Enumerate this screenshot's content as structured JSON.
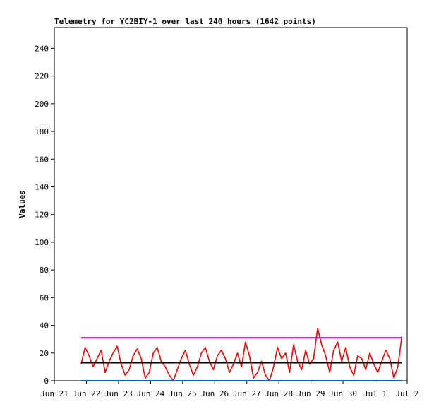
{
  "chart_data": {
    "type": "line",
    "title": "Telemetry for YC2BIY-1 over last 240 hours (1642 points)",
    "xlabel": "",
    "ylabel": "Values",
    "ylim": [
      0,
      255
    ],
    "yticks": [
      0,
      20,
      40,
      60,
      80,
      100,
      120,
      140,
      160,
      180,
      200,
      220,
      240
    ],
    "xlim": [
      "2025-06-21T00:00",
      "2025-07-02T00:00"
    ],
    "xticks": [
      {
        "label": "Jun 21",
        "x": "2025-06-21T00:00"
      },
      {
        "label": "Jun 22",
        "x": "2025-06-22T00:00"
      },
      {
        "label": "Jun 23",
        "x": "2025-06-23T00:00"
      },
      {
        "label": "Jun 24",
        "x": "2025-06-24T00:00"
      },
      {
        "label": "Jun 25",
        "x": "2025-06-25T00:00"
      },
      {
        "label": "Jun 26",
        "x": "2025-06-26T00:00"
      },
      {
        "label": "Jun 27",
        "x": "2025-06-27T00:00"
      },
      {
        "label": "Jun 28",
        "x": "2025-06-28T00:00"
      },
      {
        "label": "Jun 29",
        "x": "2025-06-29T00:00"
      },
      {
        "label": "Jun 30",
        "x": "2025-06-30T00:00"
      },
      {
        "label": "Jul 1",
        "x": "2025-07-01T00:00"
      },
      {
        "label": "Jul 2",
        "x": "2025-07-02T00:00"
      }
    ],
    "grid": false,
    "legend": "none",
    "series": [
      {
        "color": "#ff0000",
        "style": "line",
        "x": [
          "2025-06-21T20:00",
          "2025-06-21T23:00",
          "2025-06-22T02:00",
          "2025-06-22T05:00",
          "2025-06-22T08:00",
          "2025-06-22T11:00",
          "2025-06-22T14:00",
          "2025-06-22T17:00",
          "2025-06-22T20:00",
          "2025-06-22T23:00",
          "2025-06-23T02:00",
          "2025-06-23T05:00",
          "2025-06-23T08:00",
          "2025-06-23T11:00",
          "2025-06-23T14:00",
          "2025-06-23T17:00",
          "2025-06-23T20:00",
          "2025-06-23T23:00",
          "2025-06-24T02:00",
          "2025-06-24T05:00",
          "2025-06-24T08:00",
          "2025-06-24T11:00",
          "2025-06-24T14:00",
          "2025-06-24T17:00",
          "2025-06-24T20:00",
          "2025-06-24T23:00",
          "2025-06-25T02:00",
          "2025-06-25T05:00",
          "2025-06-25T08:00",
          "2025-06-25T11:00",
          "2025-06-25T14:00",
          "2025-06-25T17:00",
          "2025-06-25T20:00",
          "2025-06-25T23:00",
          "2025-06-26T02:00",
          "2025-06-26T05:00",
          "2025-06-26T08:00",
          "2025-06-26T11:00",
          "2025-06-26T14:00",
          "2025-06-26T17:00",
          "2025-06-26T20:00",
          "2025-06-26T23:00",
          "2025-06-27T02:00",
          "2025-06-27T05:00",
          "2025-06-27T08:00",
          "2025-06-27T11:00",
          "2025-06-27T14:00",
          "2025-06-27T17:00",
          "2025-06-27T20:00",
          "2025-06-27T23:00",
          "2025-06-28T02:00",
          "2025-06-28T05:00",
          "2025-06-28T08:00",
          "2025-06-28T11:00",
          "2025-06-28T14:00",
          "2025-06-28T17:00",
          "2025-06-28T20:00",
          "2025-06-28T23:00",
          "2025-06-29T02:00",
          "2025-06-29T05:00",
          "2025-06-29T08:00",
          "2025-06-29T11:00",
          "2025-06-29T14:00",
          "2025-06-29T17:00",
          "2025-06-29T20:00",
          "2025-06-29T23:00",
          "2025-06-30T02:00",
          "2025-06-30T05:00",
          "2025-06-30T08:00",
          "2025-06-30T11:00",
          "2025-06-30T14:00",
          "2025-06-30T17:00",
          "2025-06-30T20:00",
          "2025-06-30T23:00",
          "2025-07-01T02:00",
          "2025-07-01T05:00",
          "2025-07-01T08:00",
          "2025-07-01T11:00",
          "2025-07-01T14:00",
          "2025-07-01T17:00",
          "2025-07-01T20:00"
        ],
        "y": [
          12,
          24,
          18,
          10,
          16,
          22,
          6,
          14,
          20,
          25,
          12,
          4,
          8,
          18,
          23,
          16,
          2,
          6,
          20,
          24,
          14,
          10,
          4,
          0,
          8,
          16,
          22,
          12,
          4,
          10,
          20,
          24,
          14,
          8,
          18,
          22,
          16,
          6,
          12,
          20,
          10,
          28,
          18,
          2,
          6,
          14,
          4,
          0,
          10,
          24,
          16,
          20,
          6,
          26,
          14,
          8,
          22,
          12,
          16,
          38,
          26,
          18,
          6,
          22,
          28,
          14,
          24,
          10,
          4,
          18,
          16,
          8,
          20,
          12,
          6,
          14,
          22,
          16,
          2,
          10,
          32
        ]
      },
      {
        "color": "#000000",
        "style": "line",
        "x": [
          "2025-06-21T20:00",
          "2025-07-01T20:00"
        ],
        "y": [
          13,
          13
        ]
      },
      {
        "color": "#800080",
        "style": "line",
        "x": [
          "2025-06-21T20:00",
          "2025-07-01T20:00"
        ],
        "y": [
          31,
          31
        ]
      },
      {
        "color": "#0066cc",
        "style": "line",
        "x": [
          "2025-06-21T20:00",
          "2025-07-01T20:00"
        ],
        "y": [
          0,
          0
        ]
      }
    ]
  }
}
